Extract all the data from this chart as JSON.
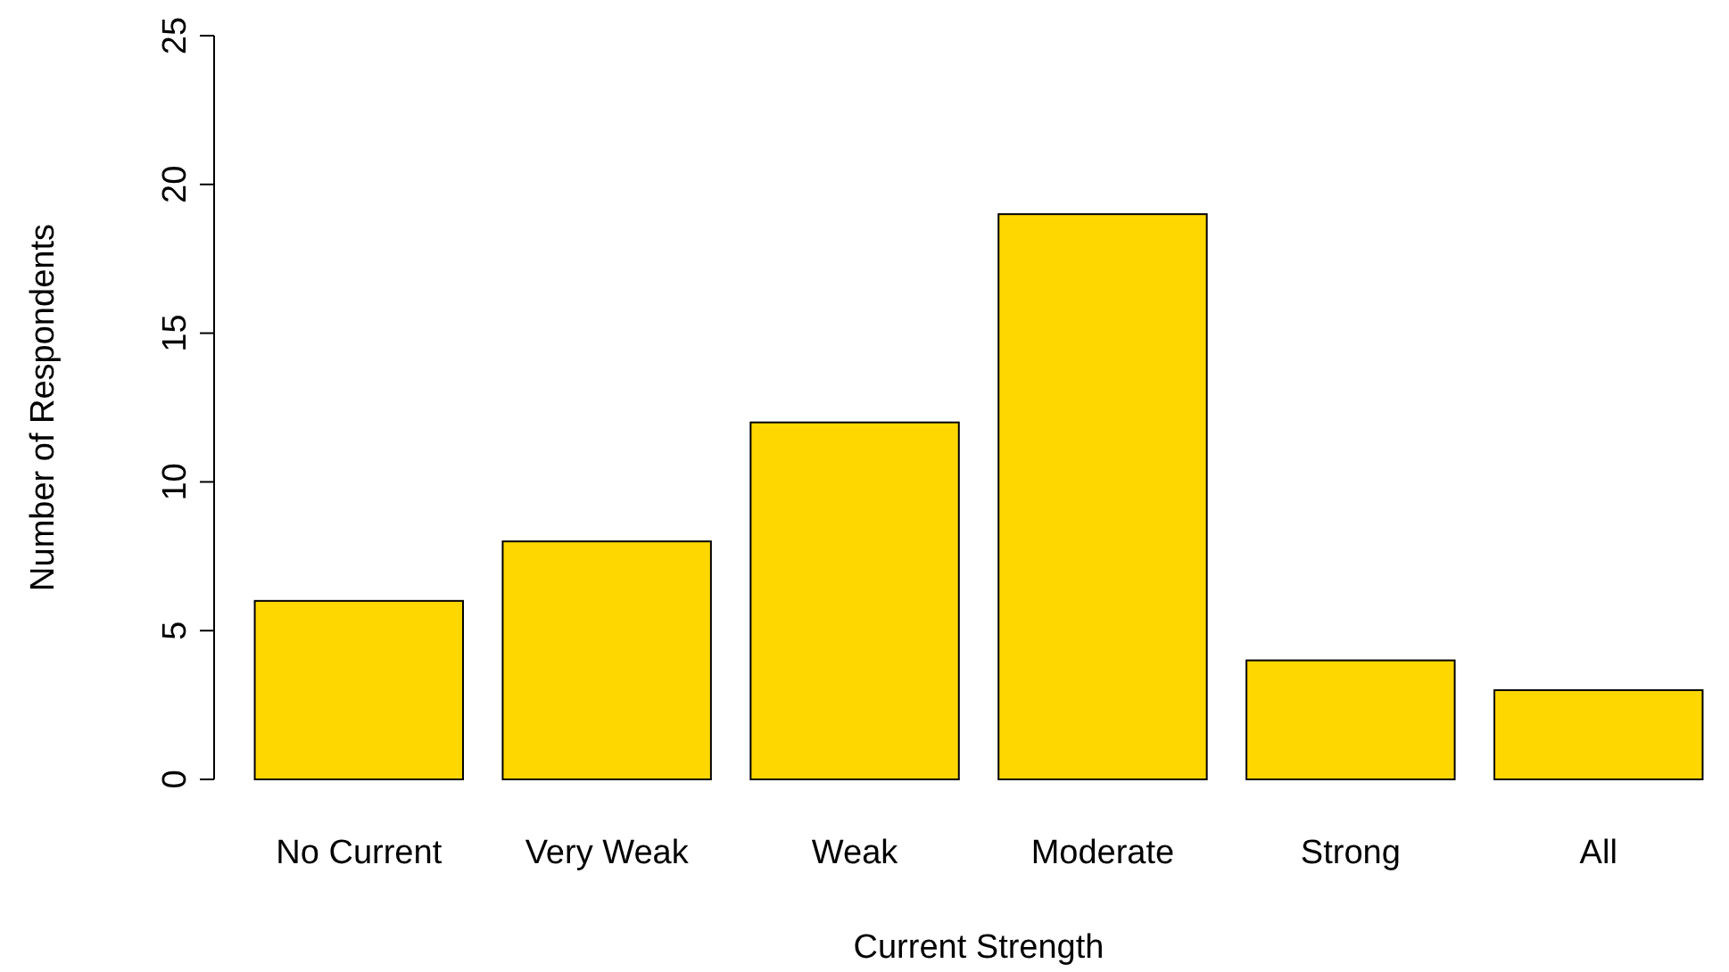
{
  "chart_data": {
    "type": "bar",
    "xlabel": "Current Strength",
    "ylabel": "Number of Respondents",
    "categories": [
      "No Current",
      "Very Weak",
      "Weak",
      "Moderate",
      "Strong",
      "All"
    ],
    "values": [
      6,
      8,
      12,
      19,
      4,
      3
    ],
    "color": "#ffd700",
    "ylim": [
      0,
      25
    ],
    "yticks": [
      0,
      5,
      10,
      15,
      20,
      25
    ],
    "grid": false
  }
}
